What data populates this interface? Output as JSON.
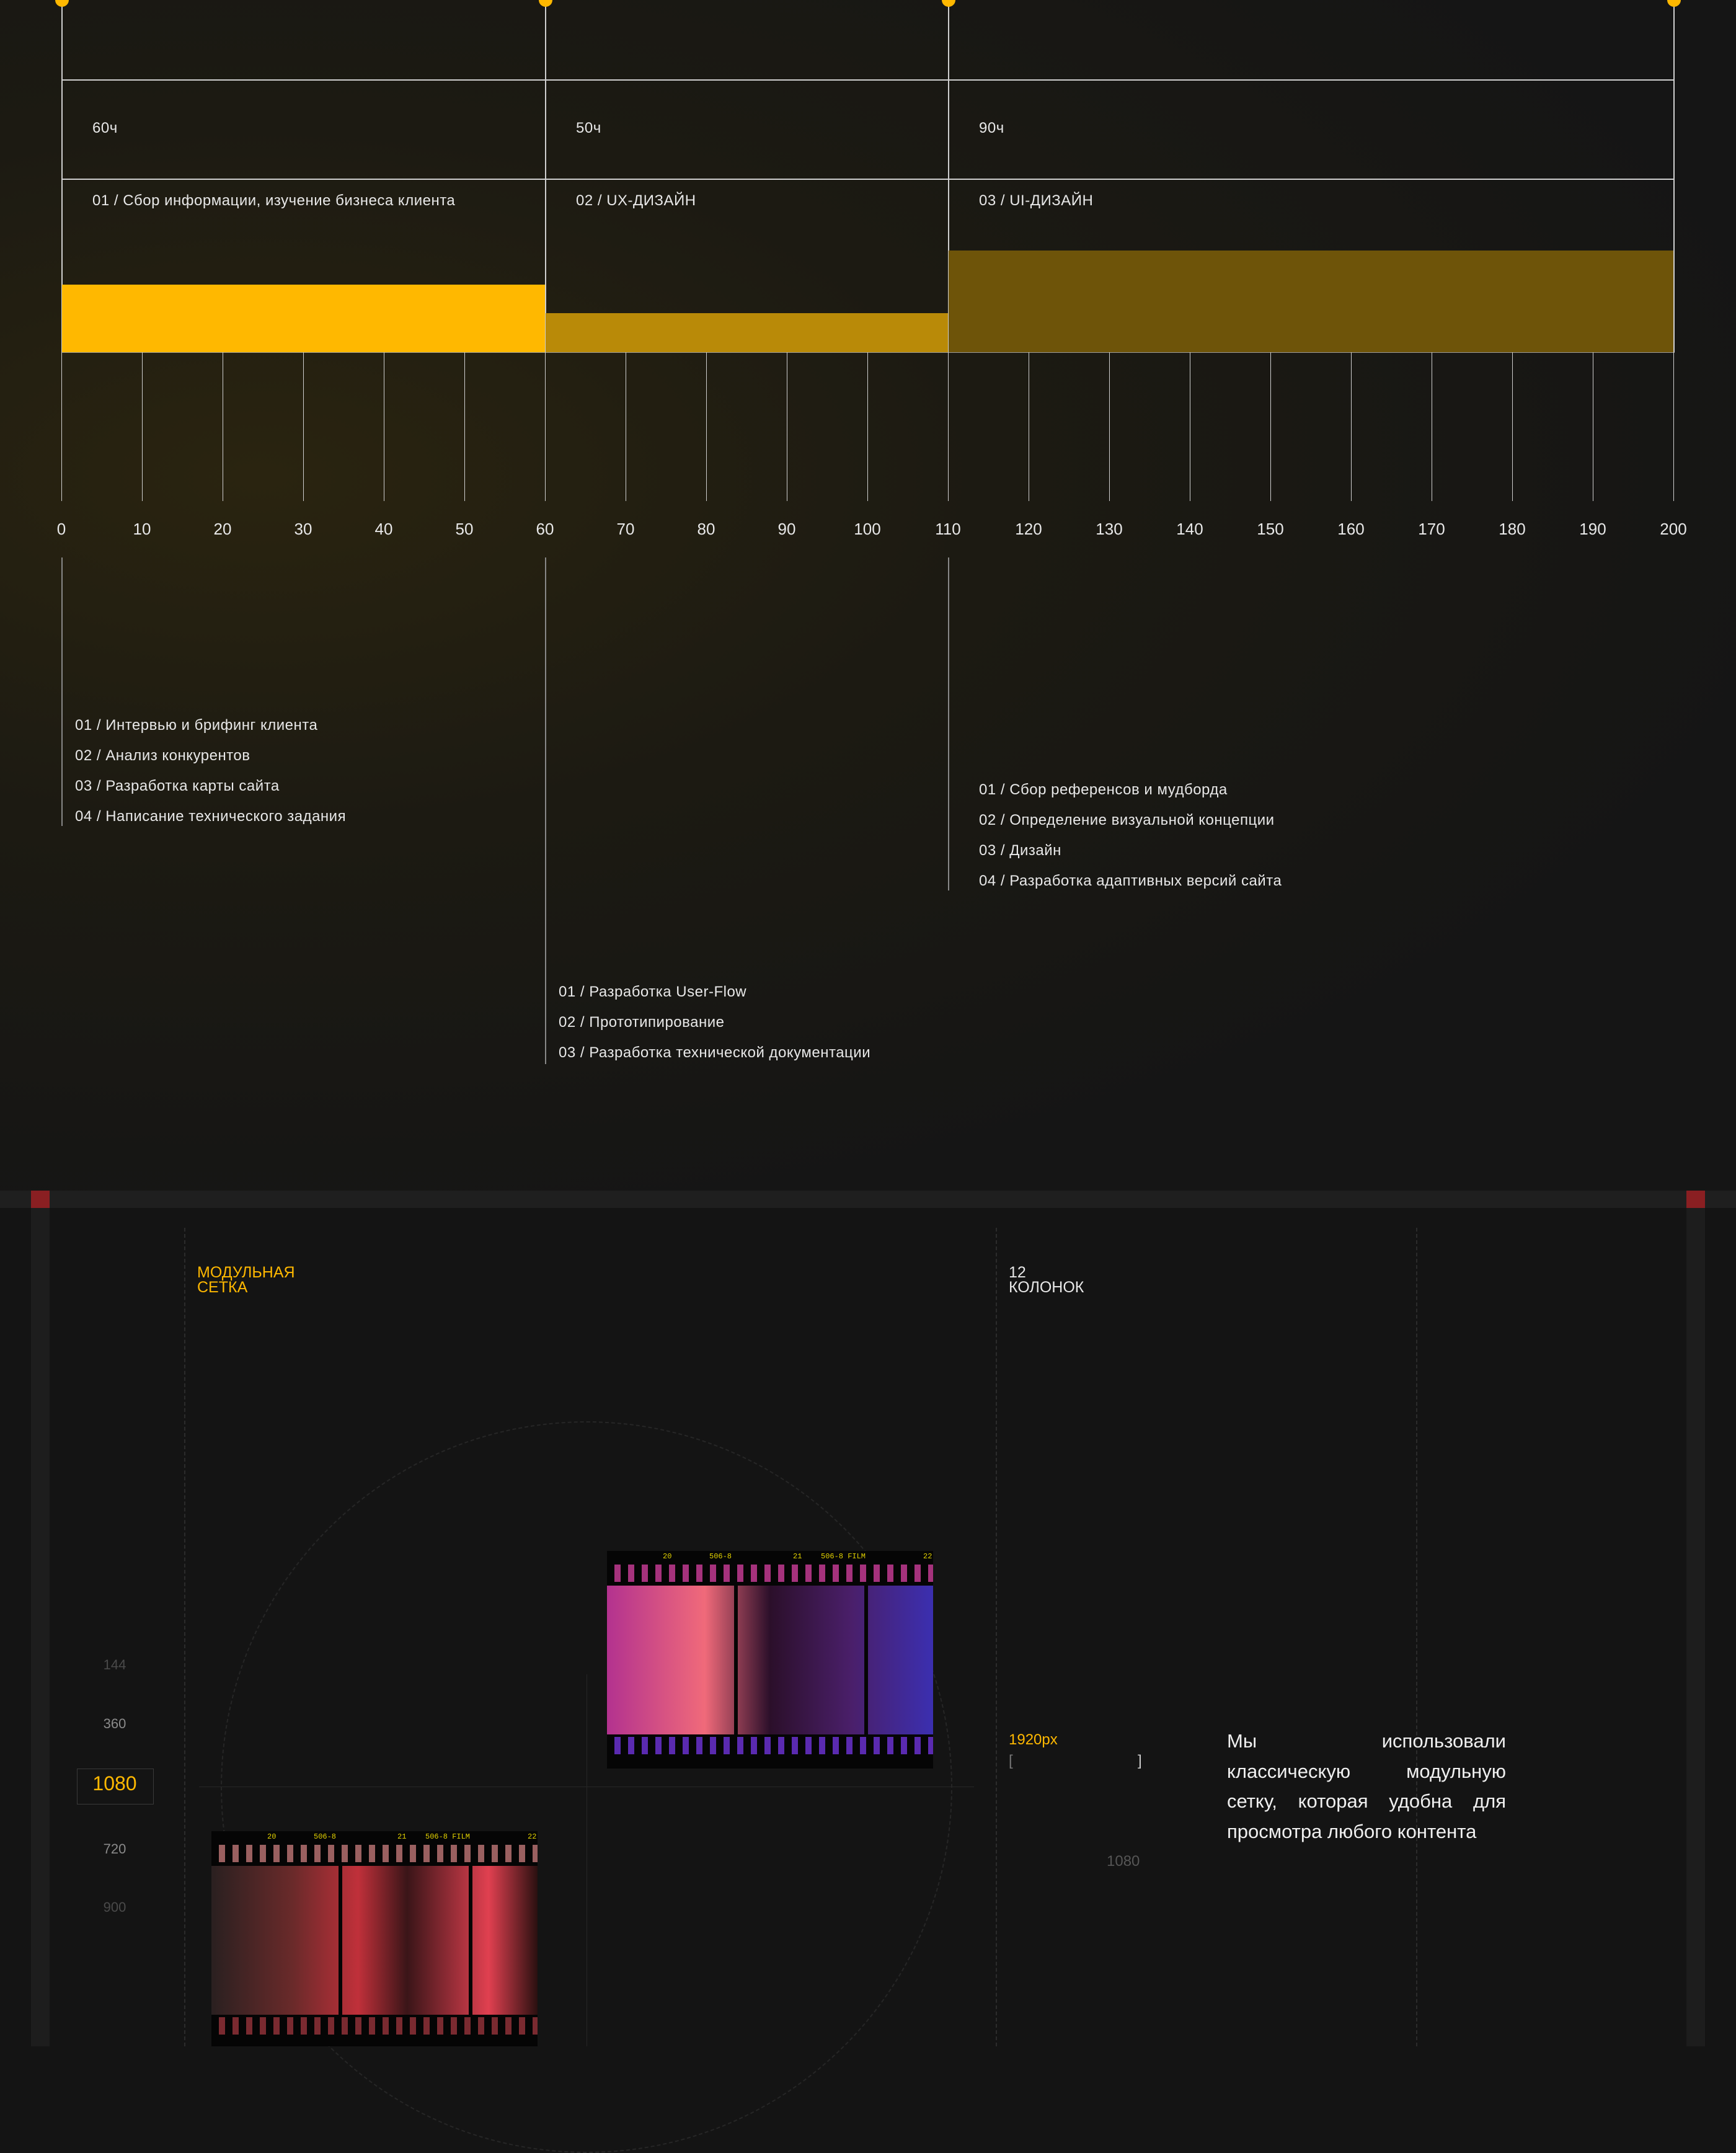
{
  "timeline": {
    "axis": {
      "min": 0,
      "max": 200,
      "step": 10,
      "ticks": [
        "0",
        "10",
        "20",
        "30",
        "40",
        "50",
        "60",
        "70",
        "80",
        "90",
        "100",
        "110",
        "120",
        "130",
        "140",
        "150",
        "160",
        "170",
        "180",
        "190",
        "200"
      ]
    },
    "marker_color": "#ffb800",
    "phases": [
      {
        "hours": "60ч",
        "title": "01 / Сбор информации, изучение бизнеса клиента",
        "start": 0,
        "end": 60,
        "color": "#ffb800",
        "tasks": [
          "01 / Интервью и брифинг клиента",
          "02 / Анализ конкурентов",
          "03 / Разработка карты сайта",
          "04 / Написание технического задания"
        ]
      },
      {
        "hours": "50ч",
        "title": "02 / UX-ДИЗАЙН",
        "start": 60,
        "end": 110,
        "color": "#b98a08",
        "tasks": [
          "01 / Разработка User-Flow",
          "02 / Прототипирование",
          "03 / Разработка технической документации"
        ]
      },
      {
        "hours": "90ч",
        "title": "03 / UI-ДИЗАЙН",
        "start": 110,
        "end": 200,
        "color": "#6e5409",
        "tasks": [
          "01 / Сбор референсов и мудборда",
          "02 / Определение визуальной концепции",
          "03 / Дизайн",
          "04 / Разработка адаптивных версий сайта"
        ]
      }
    ]
  },
  "grid_section": {
    "title_line1": "МОДУЛЬНАЯ",
    "title_line2": "СЕТКА",
    "columns_line1": "12",
    "columns_line2": "КОЛОНОК",
    "scale_values": [
      "144",
      "360",
      "1080",
      "720",
      "900"
    ],
    "width_label": "1920px",
    "bracket_open": "[",
    "bracket_close": "]",
    "height_label": "1080",
    "description": "Мы использовали классическую модульную сетку, которая удобна для просмотра любого контента",
    "accent_color": "#ffb800",
    "film_labels": [
      "20",
      "506-8",
      "21",
      "506-8 FILM",
      "22"
    ]
  }
}
